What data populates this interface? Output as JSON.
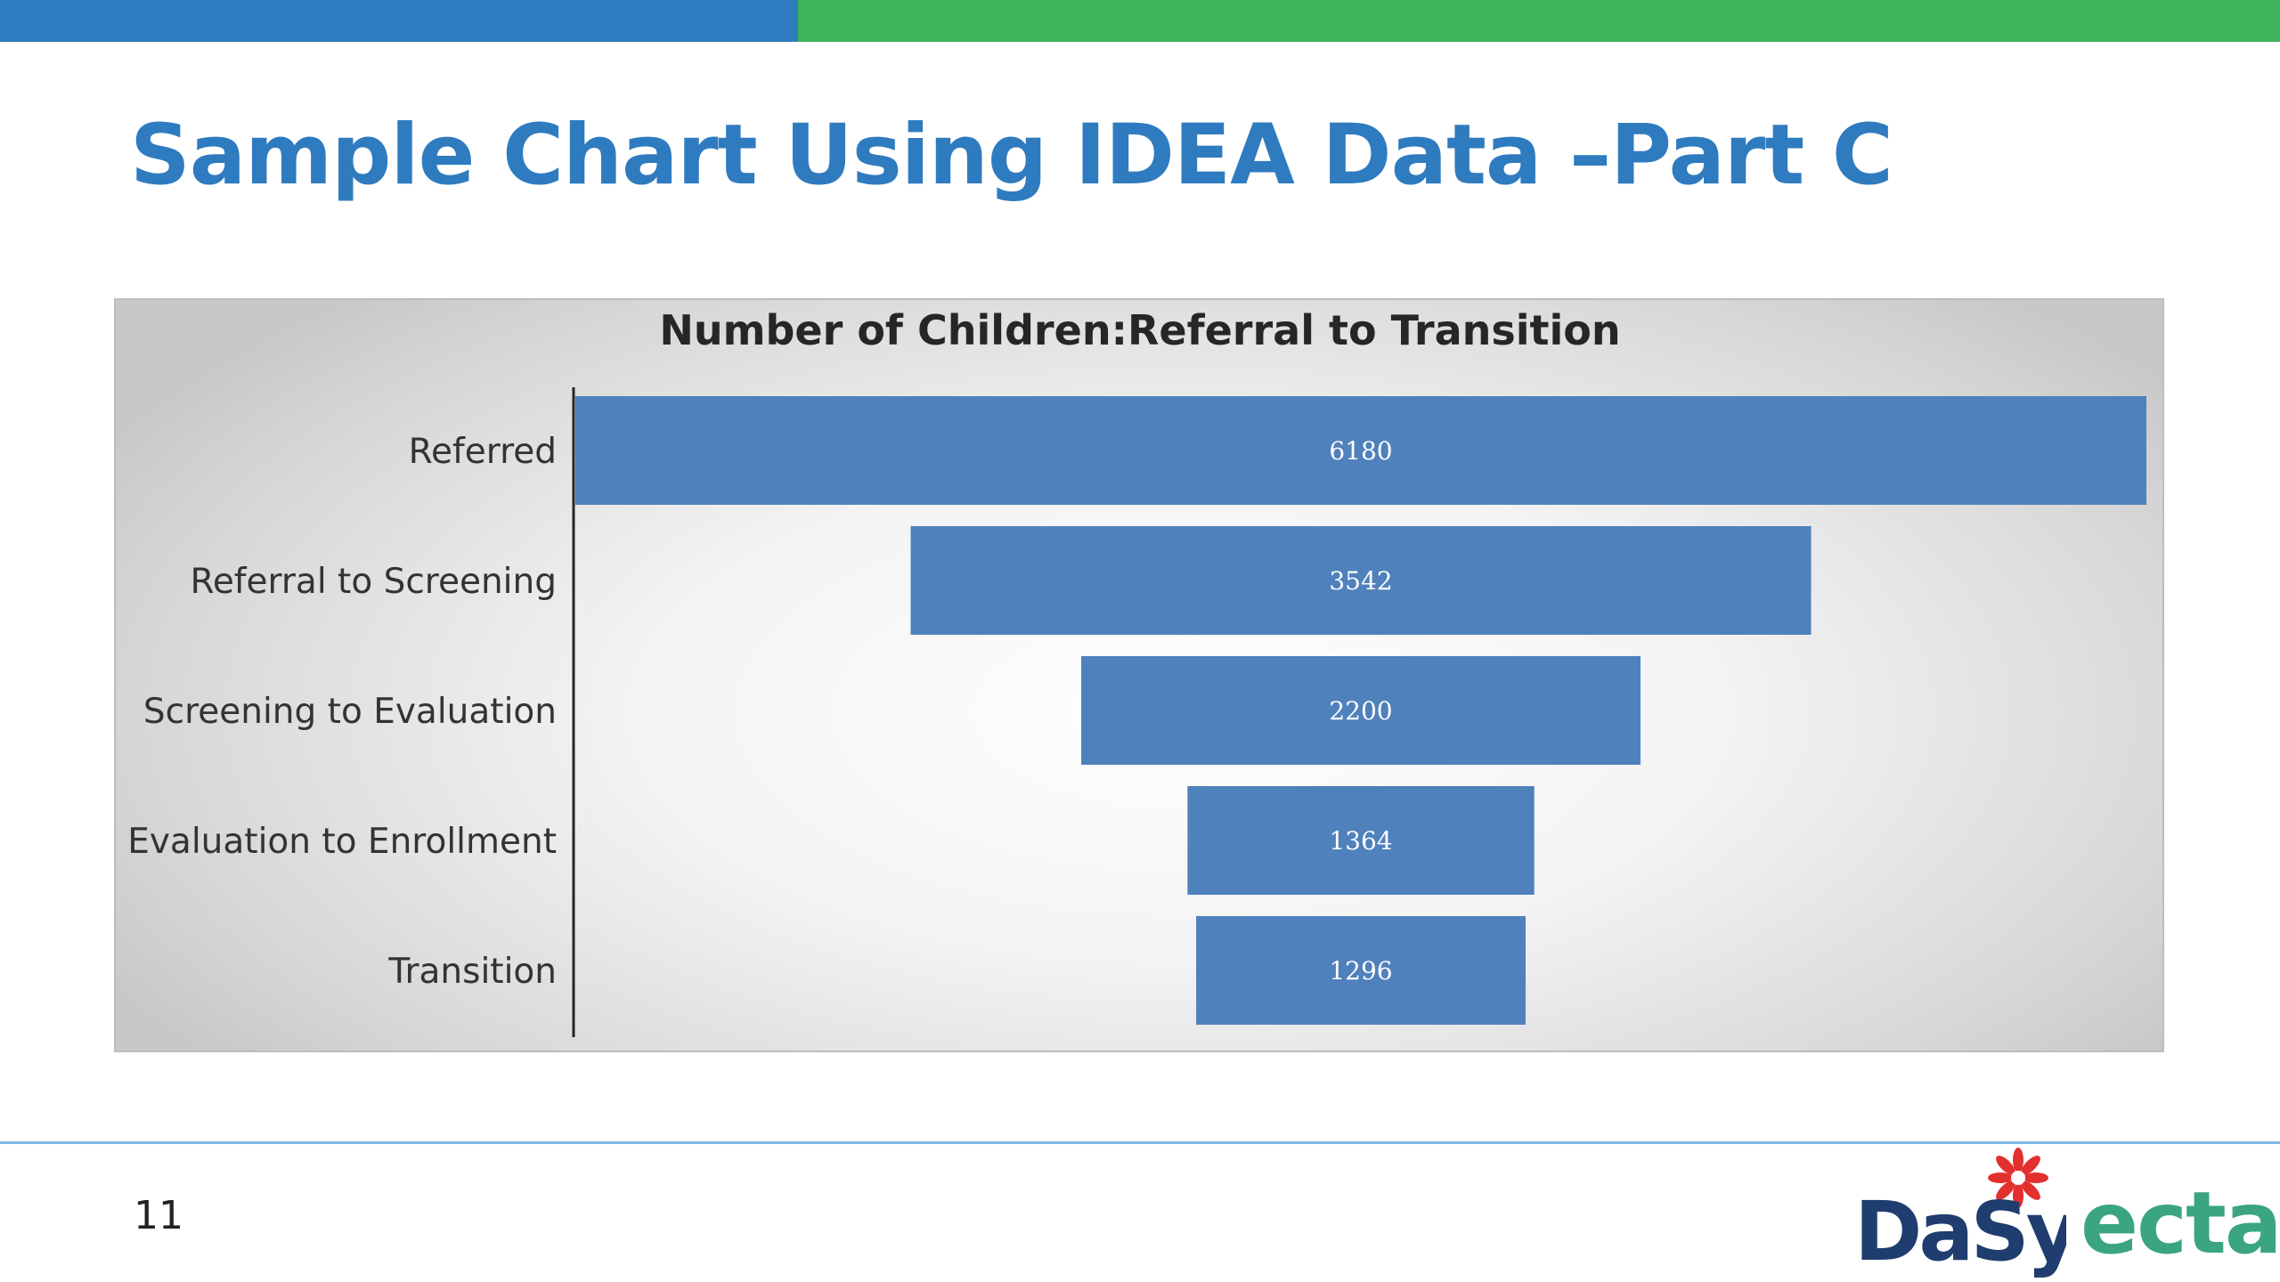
{
  "slide": {
    "title": "Sample Chart Using IDEA Data –Part C",
    "page_number": "11"
  },
  "logos": {
    "dasy": "DaSy",
    "ecta": "ecta"
  },
  "colors": {
    "brand_blue": "#2f7bbf",
    "brand_green": "#3db35a",
    "bar": "#4f81bd",
    "footer_rule": "#7fb8e6",
    "ecta": "#3aa57e",
    "dasy_flower": "#e2302f"
  },
  "chart_data": {
    "type": "bar",
    "orientation": "horizontal",
    "style": "funnel",
    "title": "Number of Children:Referral to Transition",
    "categories": [
      "Referred",
      "Referral to Screening",
      "Screening to Evaluation",
      "Evaluation to Enrollment",
      "Transition"
    ],
    "values": [
      6180,
      3542,
      2200,
      1364,
      1296
    ],
    "data_labels": [
      "6180",
      "3542",
      "2200",
      "1364",
      "1296"
    ],
    "xlabel": "",
    "ylabel": "",
    "grid": false,
    "legend": "none"
  }
}
